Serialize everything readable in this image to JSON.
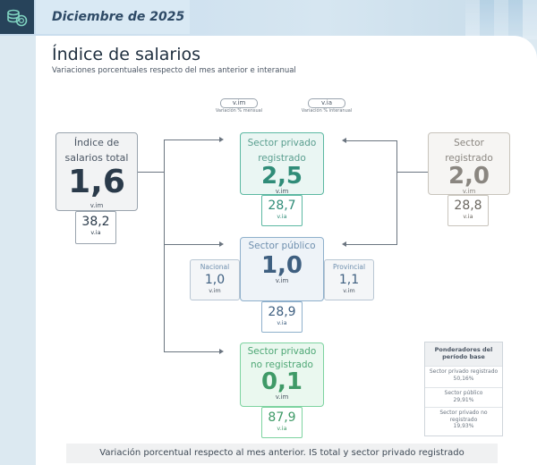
{
  "header": {
    "date": "Diciembre de 2025",
    "logo_icon": "coins-stack-icon"
  },
  "page": {
    "title": "Índice de salarios",
    "subtitle": "Variaciones porcentuales respecto del mes anterior e interanual"
  },
  "legend": {
    "vim_chip": "v.im",
    "vim_caption": "Variación % mensual",
    "via_chip": "v.ia",
    "via_caption": "Variación % interanual"
  },
  "total": {
    "label_line1": "Índice de",
    "label_line2": "salarios total",
    "vim": "1,6",
    "vim_unit": "v.im",
    "via": "38,2",
    "via_unit": "v.ia"
  },
  "privado_registrado": {
    "label_line1": "Sector privado",
    "label_line2": "registrado",
    "vim": "2,5",
    "vim_unit": "v.im",
    "via": "28,7",
    "via_unit": "v.ia"
  },
  "sector_registrado": {
    "label_line1": "Sector",
    "label_line2": "registrado",
    "vim": "2,0",
    "vim_unit": "v.im",
    "via": "28,8",
    "via_unit": "v.ia"
  },
  "sector_publico": {
    "label": "Sector público",
    "vim": "1,0",
    "vim_unit": "v.im",
    "via": "28,9",
    "via_unit": "v.ia",
    "nacional": {
      "label": "Nacional",
      "vim": "1,0",
      "unit": "v.im"
    },
    "provincial": {
      "label": "Provincial",
      "vim": "1,1",
      "unit": "v.im"
    }
  },
  "privado_no_registrado": {
    "label_line1": "Sector privado",
    "label_line2": "no registrado",
    "vim": "0,1",
    "vim_unit": "v.im",
    "via": "87,9",
    "via_unit": "v.ia"
  },
  "ponderadores": {
    "title_line1": "Ponderadores del",
    "title_line2": "período base",
    "rows": [
      {
        "name": "Sector privado registrado",
        "value": "50,16%"
      },
      {
        "name": "Sector público",
        "value": "29,91%"
      },
      {
        "name_line1": "Sector privado no",
        "name_line2": "registrado",
        "value": "19,93%"
      }
    ]
  },
  "footer": {
    "caption": "Variación porcentual respecto al mes anterior. IS total y sector privado registrado"
  },
  "colors": {
    "navy": "#27435a",
    "teal": "#2f8c78",
    "green": "#3f9a67",
    "blue": "#3e5f80",
    "gray": "#8a8680"
  }
}
